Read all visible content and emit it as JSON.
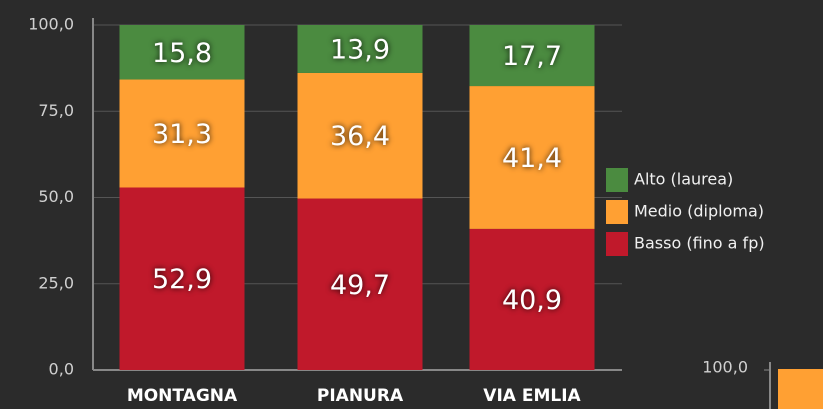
{
  "chart_data": [
    {
      "type": "stacked_bar",
      "categories": [
        "MONTAGNA",
        "PIANURA",
        "VIA EMLIA"
      ],
      "series": [
        {
          "name": "Basso (fino a fp)",
          "color": "#c0192b",
          "values": [
            52.9,
            49.7,
            40.9
          ],
          "value_labels": [
            "52,9",
            "49,7",
            "40,9"
          ]
        },
        {
          "name": "Medio (diploma)",
          "color": "#ffa033",
          "values": [
            31.3,
            36.4,
            41.4
          ],
          "value_labels": [
            "31,3",
            "36,4",
            "41,4"
          ]
        },
        {
          "name": "Alto (laurea)",
          "color": "#4b8b40",
          "values": [
            15.8,
            13.9,
            17.7
          ],
          "value_labels": [
            "15,8",
            "13,9",
            "17,7"
          ]
        }
      ],
      "ylim": [
        0,
        100
      ],
      "yticks": [
        {
          "value": 0,
          "label": "0,0"
        },
        {
          "value": 25,
          "label": "25,0"
        },
        {
          "value": 50,
          "label": "50,0"
        },
        {
          "value": 75,
          "label": "75,0"
        },
        {
          "value": 100,
          "label": "100,0"
        }
      ],
      "grid": true,
      "legend": "right"
    },
    {
      "type": "stacked_bar",
      "ylim": [
        0,
        100
      ],
      "yticks": [
        {
          "value": 100,
          "label": "100,0"
        }
      ]
    }
  ]
}
